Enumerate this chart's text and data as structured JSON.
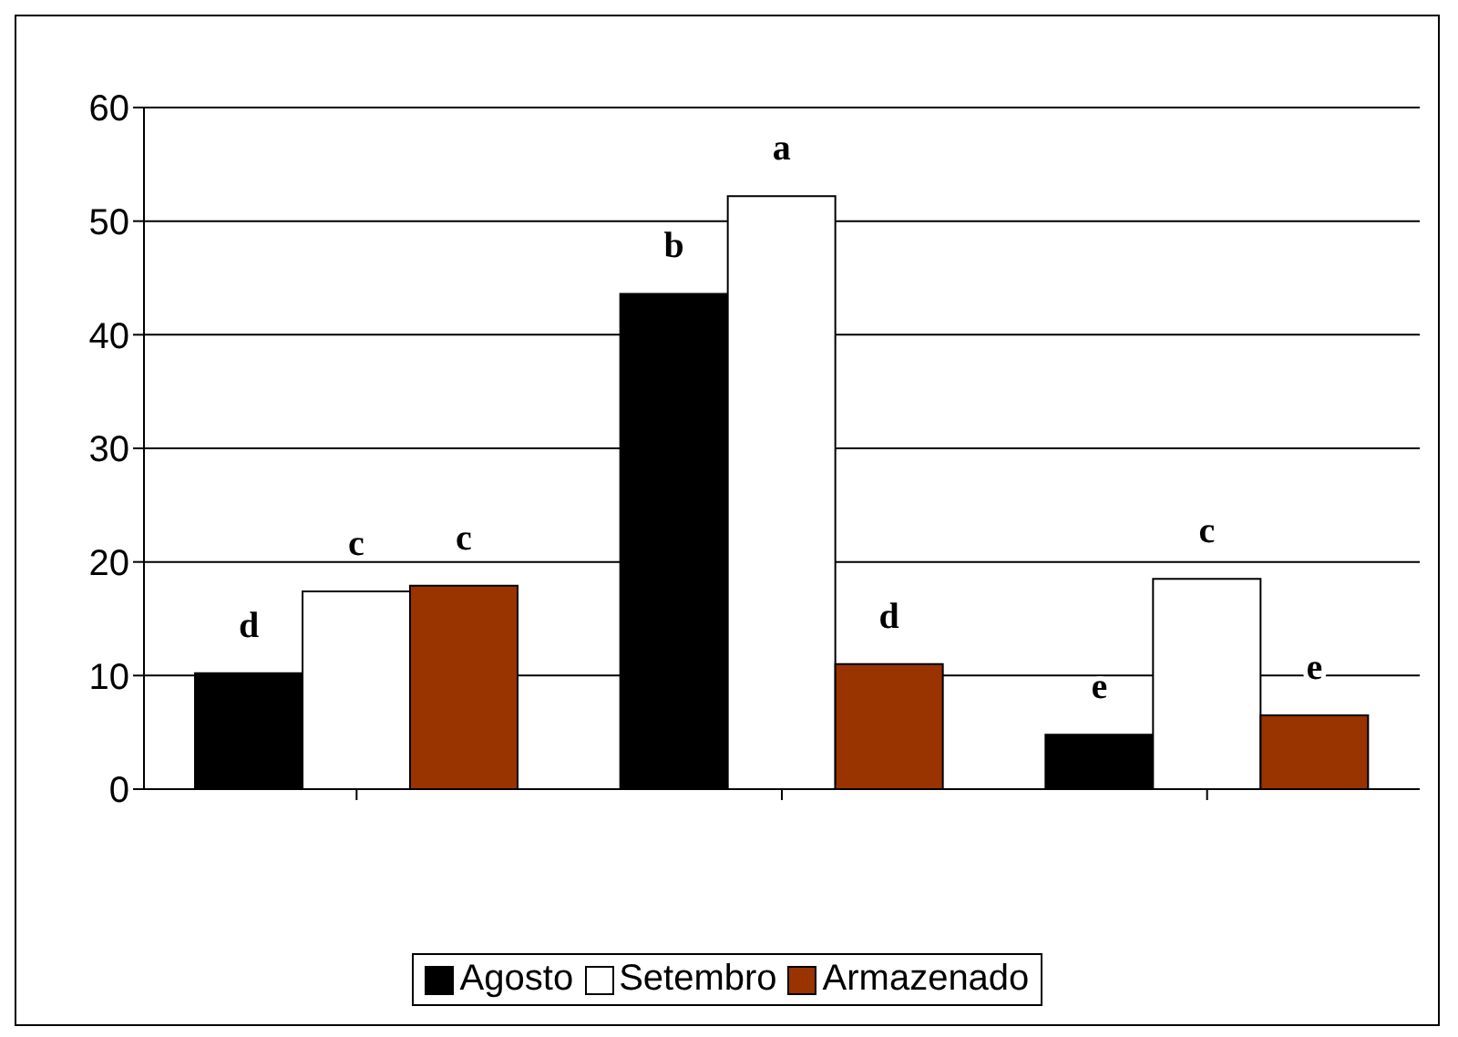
{
  "chart_data": {
    "type": "bar",
    "categories": [
      null,
      null,
      null
    ],
    "series": [
      {
        "name": "Agosto",
        "color": "#000000",
        "values": [
          10.2,
          43.6,
          4.8
        ],
        "value_labels": [
          "d",
          "b",
          "e"
        ]
      },
      {
        "name": "Setembro",
        "color": "#ffffff",
        "values": [
          17.4,
          52.2,
          18.5
        ],
        "value_labels": [
          "c",
          "a",
          "c"
        ]
      },
      {
        "name": "Armazenado",
        "color": "#993300",
        "values": [
          17.9,
          11.0,
          6.5
        ],
        "value_labels": [
          "c",
          "d",
          "e"
        ]
      }
    ],
    "ylim": [
      0,
      60
    ],
    "yticks": [
      0,
      10,
      20,
      30,
      40,
      50,
      60
    ],
    "grid": "y",
    "legend": "bottom"
  }
}
